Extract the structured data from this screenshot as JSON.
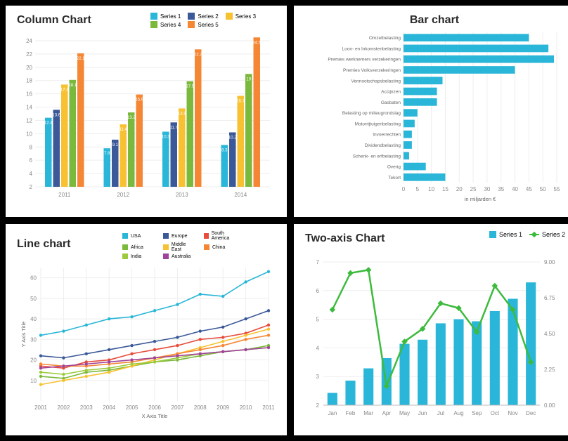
{
  "column_chart": {
    "title": "Column Chart",
    "legend": [
      "Series 1",
      "Series 2",
      "Series 3",
      "Series 4",
      "Series 5"
    ],
    "colors": [
      "#29b6d8",
      "#3b5998",
      "#f8c132",
      "#7bb93c",
      "#f58634"
    ],
    "categories": [
      "2011",
      "2012",
      "2013",
      "2014"
    ],
    "data": [
      [
        12.4,
        13.6,
        17.4,
        18.1,
        22.1
      ],
      [
        7.8,
        9.1,
        11.4,
        13.2,
        15.9
      ],
      [
        10.3,
        11.7,
        13.8,
        17.9,
        22.7
      ],
      [
        8.3,
        10.2,
        15.7,
        19.0,
        24.5
      ]
    ],
    "ylim": [
      2,
      24
    ],
    "ytick_step": 2,
    "grid_color": "#eeeeee",
    "background": "#ffffff"
  },
  "bar_chart": {
    "title": "Bar chart",
    "color": "#29b6d8",
    "xlabel": "in miljarden €",
    "xlim": [
      0,
      55
    ],
    "xtick_step": 5,
    "items": [
      {
        "label": "Omzetbelasting",
        "value": 45
      },
      {
        "label": "Loon- en Inkomstenbelasting",
        "value": 52
      },
      {
        "label": "Premies werknemers verzekeringen",
        "value": 54
      },
      {
        "label": "Premies Volksverzekeringen",
        "value": 40
      },
      {
        "label": "Vennootschapsbelasting",
        "value": 14
      },
      {
        "label": "Accijnzen",
        "value": 12
      },
      {
        "label": "Gasbaten",
        "value": 12
      },
      {
        "label": "Belasting op milieugrondslag",
        "value": 5
      },
      {
        "label": "Motorrijtuigenbelasting",
        "value": 4
      },
      {
        "label": "Invoerrechten",
        "value": 3
      },
      {
        "label": "Dividendbelasting",
        "value": 3
      },
      {
        "label": "Schenk- en erfbelasting",
        "value": 2
      },
      {
        "label": "Overig",
        "value": 8
      },
      {
        "label": "Tekort",
        "value": 15
      }
    ],
    "grid_color": "#eeeeee"
  },
  "line_chart": {
    "title": "Line chart",
    "xlabel": "X Axis Title",
    "ylabel": "Y Axis Title",
    "legend": [
      "USA",
      "Europe",
      "South America",
      "Africa",
      "Middle East",
      "China",
      "India",
      "Australia"
    ],
    "colors": [
      "#29b6d8",
      "#3b5998",
      "#e74c3c",
      "#7bb93c",
      "#f8c132",
      "#f58634",
      "#9bcb3c",
      "#a0439b"
    ],
    "x": [
      2001,
      2002,
      2003,
      2004,
      2005,
      2006,
      2007,
      2008,
      2009,
      2010,
      2011
    ],
    "series": [
      [
        32,
        34,
        37,
        40,
        41,
        44,
        47,
        52,
        51,
        58,
        63
      ],
      [
        22,
        21,
        23,
        25,
        27,
        29,
        31,
        34,
        36,
        40,
        44
      ],
      [
        17,
        16,
        19,
        20,
        23,
        25,
        27,
        30,
        31,
        33,
        37
      ],
      [
        12,
        11,
        14,
        15,
        17,
        19,
        20,
        22,
        24,
        25,
        27
      ],
      [
        8,
        10,
        12,
        14,
        17,
        20,
        23,
        26,
        29,
        32,
        35
      ],
      [
        18,
        17,
        17,
        18,
        19,
        21,
        23,
        25,
        27,
        30,
        32
      ],
      [
        14,
        13,
        15,
        16,
        18,
        19,
        21,
        23,
        24,
        25,
        26
      ],
      [
        16,
        17,
        18,
        19,
        20,
        21,
        22,
        23,
        24,
        25,
        26
      ]
    ],
    "ylim": [
      0,
      65
    ],
    "ytick_step": 10,
    "grid_color": "#eeeeee"
  },
  "two_axis_chart": {
    "title": "Two-axis Chart",
    "legend": [
      "Series 1",
      "Series 2"
    ],
    "colors": [
      "#29b6d8",
      "#3dbb3d"
    ],
    "categories": [
      "Jan",
      "Feb",
      "Mar",
      "Apr",
      "May",
      "Jun",
      "Jul",
      "Aug",
      "Sep",
      "Oct",
      "Nov",
      "Dec"
    ],
    "bars": [
      0.6,
      1.2,
      1.8,
      2.3,
      3.0,
      3.2,
      4.0,
      4.2,
      4.1,
      4.6,
      5.2,
      6.0
    ],
    "line": [
      6.0,
      8.3,
      8.5,
      1.2,
      4.0,
      4.8,
      6.4,
      6.1,
      4.6,
      7.5,
      6.0,
      2.7
    ],
    "y1_lim": [
      2,
      7
    ],
    "y1_ticks": [
      2,
      3,
      4,
      5,
      6,
      7
    ],
    "y2_lim": [
      0,
      9
    ],
    "y2_ticks": [
      0.0,
      2.25,
      4.5,
      6.75,
      9.0
    ],
    "grid_color": "#eeeeee"
  }
}
